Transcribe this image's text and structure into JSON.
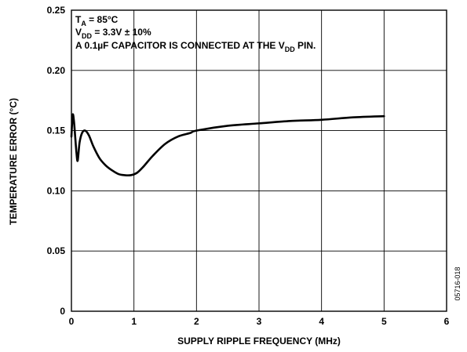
{
  "chart_data": {
    "type": "line",
    "xlabel": "SUPPLY RIPPLE FREQUENCY (MHz)",
    "ylabel": "TEMPERATURE ERROR (°C)",
    "xlim": [
      0,
      6
    ],
    "ylim": [
      0,
      0.25
    ],
    "x_ticks": [
      "0",
      "1",
      "2",
      "3",
      "4",
      "5",
      "6"
    ],
    "y_ticks": [
      "0",
      "0.05",
      "0.10",
      "0.15",
      "0.20",
      "0.25"
    ],
    "grid": true,
    "annotations": {
      "line1": {
        "main": "T",
        "sub": "A",
        "rest": " = 85°C"
      },
      "line2": {
        "main": "V",
        "sub": "DD",
        "rest": " = 3.3V ± 10%"
      },
      "line3": {
        "pre": "A 0.1µF CAPACITOR IS CONNECTED AT THE V",
        "sub": "DD",
        "post": " PIN."
      }
    },
    "figure_id": "05716-018",
    "series": [
      {
        "x": [
          0.0,
          0.02,
          0.04,
          0.06,
          0.08,
          0.1,
          0.13,
          0.17,
          0.22,
          0.28,
          0.35,
          0.45,
          0.55,
          0.65,
          0.75,
          0.85,
          0.95,
          1.05,
          1.15,
          1.3,
          1.5,
          1.7,
          1.9,
          2.0,
          2.5,
          3.0,
          3.5,
          4.0,
          4.5,
          5.0
        ],
        "y": [
          0.145,
          0.163,
          0.158,
          0.145,
          0.132,
          0.125,
          0.14,
          0.148,
          0.15,
          0.146,
          0.137,
          0.127,
          0.121,
          0.117,
          0.114,
          0.113,
          0.113,
          0.115,
          0.12,
          0.129,
          0.139,
          0.145,
          0.148,
          0.15,
          0.154,
          0.156,
          0.158,
          0.159,
          0.161,
          0.162
        ]
      }
    ]
  }
}
